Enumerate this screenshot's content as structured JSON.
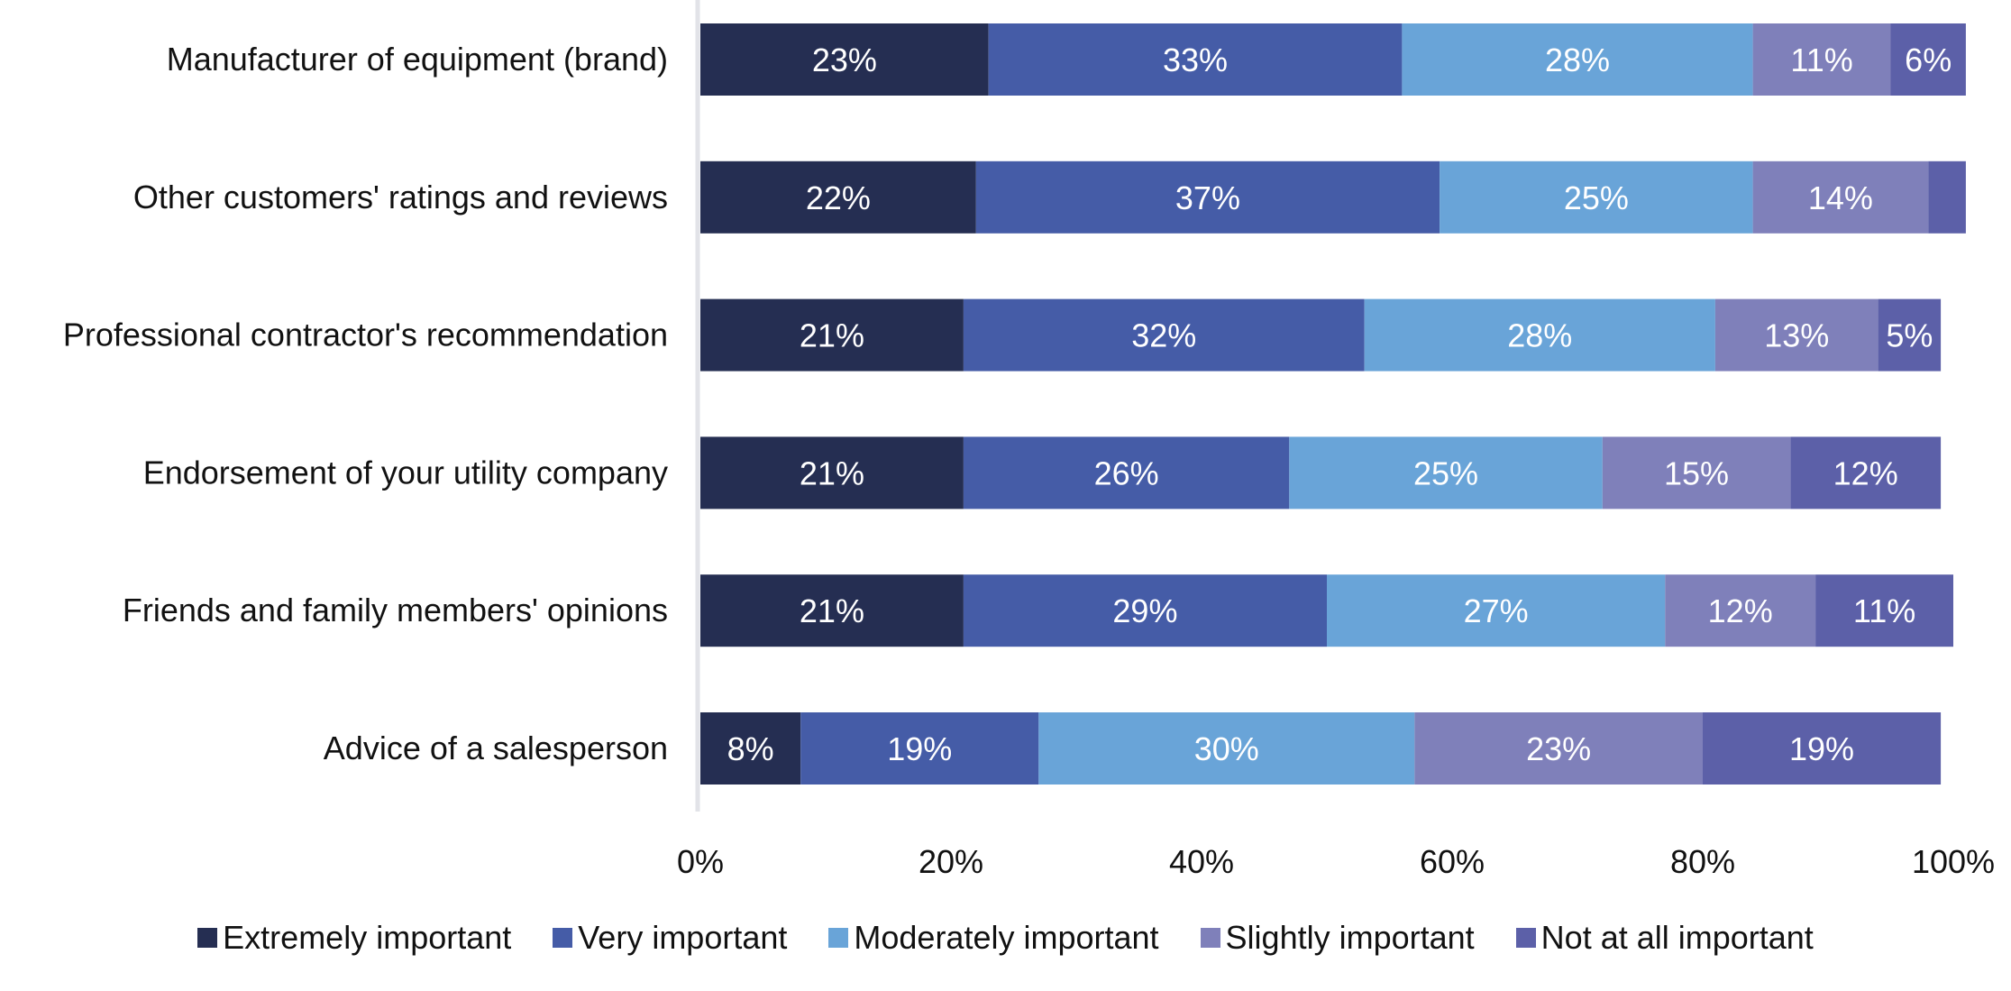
{
  "chart_data": {
    "type": "bar",
    "orientation": "horizontal",
    "stacked": "100%",
    "title": "",
    "xlabel": "",
    "ylabel": "",
    "xlim": [
      0,
      100
    ],
    "x_ticks": [
      "0%",
      "20%",
      "40%",
      "60%",
      "80%",
      "100%"
    ],
    "grid": false,
    "legend_position": "bottom",
    "categories": [
      "Manufacturer of equipment (brand)",
      "Other customers' ratings and reviews",
      "Professional contractor's recommendation",
      "Endorsement of your utility company",
      "Friends and family members' opinions",
      "Advice of a salesperson"
    ],
    "series": [
      {
        "name": "Extremely important",
        "color": "#252E52",
        "values": [
          23,
          22,
          21,
          21,
          21,
          8
        ],
        "labels": [
          "23%",
          "22%",
          "21%",
          "21%",
          "21%",
          "8%"
        ]
      },
      {
        "name": "Very important",
        "color": "#455CA7",
        "values": [
          33,
          37,
          32,
          26,
          29,
          19
        ],
        "labels": [
          "33%",
          "37%",
          "32%",
          "26%",
          "29%",
          "19%"
        ]
      },
      {
        "name": "Moderately important",
        "color": "#69A4D8",
        "values": [
          28,
          25,
          28,
          25,
          27,
          30
        ],
        "labels": [
          "28%",
          "25%",
          "28%",
          "25%",
          "27%",
          "30%"
        ]
      },
      {
        "name": "Slightly important",
        "color": "#7F80BA",
        "values": [
          11,
          14,
          13,
          15,
          12,
          23
        ],
        "labels": [
          "11%",
          "14%",
          "13%",
          "15%",
          "12%",
          "23%"
        ]
      },
      {
        "name": "Not at all important",
        "color": "#5C60A8",
        "values": [
          6,
          3,
          5,
          12,
          11,
          19
        ],
        "labels": [
          "6%",
          "",
          "5%",
          "12%",
          "11%",
          "19%"
        ]
      }
    ]
  }
}
